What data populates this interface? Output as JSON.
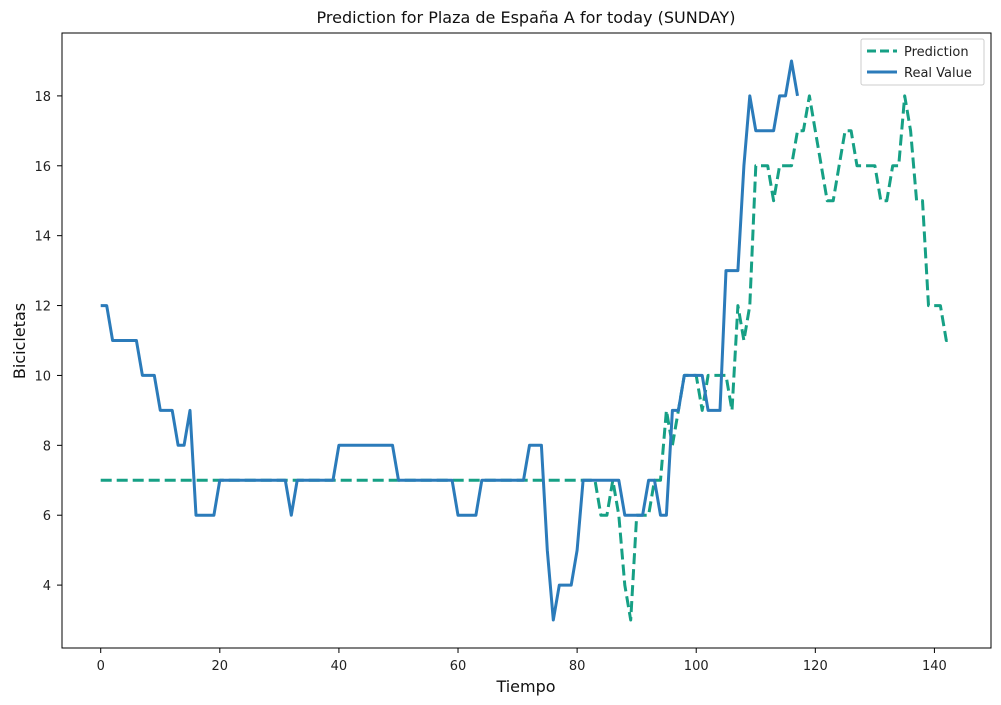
{
  "chart_data": {
    "type": "line",
    "title": "Prediction for Plaza de España A for today (SUNDAY)",
    "xlabel": "Tiempo",
    "ylabel": "Bicicletas",
    "xlim": [
      -6.5,
      149.5
    ],
    "ylim": [
      2.2,
      19.8
    ],
    "xticks": [
      0,
      20,
      40,
      60,
      80,
      100,
      120,
      140
    ],
    "yticks": [
      4,
      6,
      8,
      10,
      12,
      14,
      16,
      18
    ],
    "grid": false,
    "legend_position": "top-right",
    "series": [
      {
        "name": "Prediction",
        "style": "dashed",
        "color": "#16a085",
        "x": [
          0,
          83,
          84,
          85,
          86,
          87,
          88,
          89,
          90,
          91,
          92,
          93,
          94,
          95,
          96,
          97,
          98,
          99,
          100,
          101,
          102,
          103,
          104,
          105,
          106,
          107,
          108,
          109,
          110,
          111,
          112,
          113,
          114,
          115,
          116,
          117,
          118,
          119,
          120,
          121,
          122,
          123,
          124,
          125,
          126,
          127,
          128,
          129,
          130,
          131,
          132,
          133,
          134,
          135,
          136,
          137,
          138,
          139,
          140,
          141,
          142,
          143
        ],
        "y": [
          7,
          7,
          6,
          6,
          7,
          6,
          4,
          3,
          6,
          6,
          6,
          7,
          7,
          9,
          8,
          9,
          10,
          10,
          10,
          9,
          10,
          10,
          10,
          10,
          9,
          12,
          11,
          12,
          16,
          16,
          16,
          15,
          16,
          16,
          16,
          17,
          17,
          18,
          17,
          16,
          15,
          15,
          16,
          17,
          17,
          16,
          16,
          16,
          16,
          15,
          15,
          16,
          16,
          18,
          17,
          15,
          15,
          12,
          12,
          12,
          11,
          11
        ]
      },
      {
        "name": "Real Value",
        "style": "solid",
        "color": "#2b7bba",
        "x": [
          0,
          1,
          2,
          3,
          4,
          5,
          6,
          7,
          8,
          9,
          10,
          11,
          12,
          13,
          14,
          15,
          16,
          17,
          18,
          19,
          20,
          21,
          22,
          31,
          32,
          33,
          34,
          39,
          40,
          41,
          49,
          50,
          51,
          58,
          59,
          60,
          61,
          62,
          63,
          64,
          65,
          71,
          72,
          73,
          74,
          75,
          76,
          77,
          78,
          79,
          80,
          81,
          82,
          86,
          87,
          88,
          89,
          90,
          91,
          92,
          93,
          94,
          95,
          96,
          97,
          98,
          99,
          100,
          101,
          102,
          103,
          104,
          105,
          106,
          107,
          108,
          109,
          110,
          111,
          112,
          113,
          114,
          115,
          116,
          117
        ],
        "y": [
          12,
          12,
          11,
          11,
          11,
          11,
          11,
          10,
          10,
          10,
          9,
          9,
          9,
          8,
          8,
          9,
          6,
          6,
          6,
          6,
          7,
          7,
          7,
          7,
          6,
          7,
          7,
          7,
          8,
          8,
          8,
          7,
          7,
          7,
          7,
          6,
          6,
          6,
          6,
          7,
          7,
          7,
          8,
          8,
          8,
          5,
          3,
          4,
          4,
          4,
          5,
          7,
          7,
          7,
          7,
          6,
          6,
          6,
          6,
          7,
          7,
          6,
          6,
          9,
          9,
          10,
          10,
          10,
          10,
          9,
          9,
          9,
          13,
          13,
          13,
          16,
          18,
          17,
          17,
          17,
          17,
          18,
          18,
          19,
          18
        ]
      }
    ]
  }
}
